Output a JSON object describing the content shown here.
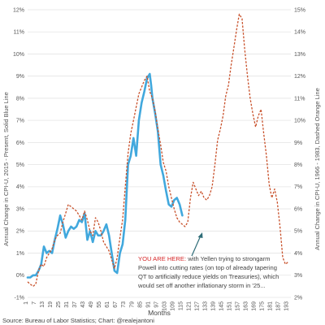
{
  "chart_data": {
    "type": "line",
    "xlabel": "Months",
    "ylabel_left": "Annual Change in CPI-U, 2015 - Present, Solid Blue Line",
    "ylabel_right": "Annual Change in CPI-U, 1966 - 1983, Dashed Orange Line",
    "x_ticks": [
      "1",
      "7",
      "13",
      "19",
      "25",
      "31",
      "37",
      "43",
      "49",
      "55",
      "61",
      "67",
      "73",
      "79",
      "85",
      "91",
      "97",
      "103",
      "109",
      "115",
      "121",
      "127",
      "133",
      "139",
      "145",
      "151",
      "157",
      "163",
      "169",
      "175",
      "181",
      "187",
      "193"
    ],
    "xlim": [
      1,
      195
    ],
    "left_ylim": [
      -1,
      12
    ],
    "left_ticks": [
      "-1%",
      "0%",
      "1%",
      "2%",
      "3%",
      "4%",
      "5%",
      "6%",
      "7%",
      "8%",
      "9%",
      "10%",
      "11%",
      "12%"
    ],
    "right_ylim": [
      2,
      15
    ],
    "right_ticks": [
      "2%",
      "3%",
      "4%",
      "5%",
      "6%",
      "7%",
      "8%",
      "9%",
      "10%",
      "11%",
      "12%",
      "13%",
      "14%",
      "15%"
    ],
    "grid": true,
    "colors": {
      "blue": "#41a8dd",
      "orange": "#c8502a"
    },
    "series": [
      {
        "axis": "left",
        "style": "solid",
        "x": [
          1,
          3,
          5,
          7,
          9,
          11,
          13,
          15,
          17,
          19,
          21,
          23,
          25,
          27,
          29,
          31,
          33,
          35,
          37,
          39,
          41,
          43,
          45,
          47,
          49,
          51,
          53,
          55,
          57,
          59,
          61,
          63,
          65,
          67,
          69,
          71,
          73,
          75,
          77,
          79,
          81,
          83,
          85,
          87,
          89,
          91,
          92,
          93,
          95,
          97,
          99,
          101,
          103,
          105,
          107,
          109,
          111,
          113,
          115
        ],
        "values": [
          -0.1,
          -0.1,
          0.0,
          0.0,
          0.2,
          0.5,
          1.3,
          1.0,
          1.1,
          1.0,
          1.6,
          2.1,
          2.7,
          2.3,
          1.7,
          2.0,
          2.2,
          2.1,
          2.2,
          2.5,
          2.4,
          2.8,
          1.6,
          2.0,
          1.5,
          2.0,
          1.8,
          1.8,
          2.0,
          2.3,
          1.8,
          1.0,
          0.2,
          0.1,
          1.0,
          1.4,
          2.5,
          5.0,
          5.4,
          6.2,
          5.4,
          7.0,
          7.8,
          8.3,
          8.9,
          9.1,
          8.6,
          8.0,
          7.3,
          6.5,
          5.0,
          4.5,
          3.8,
          3.2,
          3.1,
          3.4,
          3.5,
          3.2,
          2.7
        ]
      },
      {
        "axis": "right",
        "style": "dashed",
        "x": [
          1,
          3,
          5,
          7,
          9,
          11,
          13,
          15,
          17,
          19,
          21,
          23,
          25,
          27,
          29,
          31,
          33,
          35,
          37,
          39,
          41,
          43,
          45,
          47,
          49,
          51,
          53,
          55,
          57,
          59,
          61,
          63,
          65,
          67,
          69,
          71,
          73,
          75,
          77,
          79,
          81,
          83,
          85,
          87,
          89,
          91,
          93,
          95,
          97,
          99,
          101,
          103,
          105,
          107,
          109,
          111,
          113,
          115,
          117,
          119,
          121,
          123,
          125,
          127,
          129,
          131,
          133,
          135,
          137,
          139,
          141,
          143,
          145,
          147,
          149,
          151,
          153,
          155,
          157,
          159,
          161,
          163,
          165,
          167,
          169,
          171,
          173,
          175,
          177,
          179,
          181,
          183,
          185,
          187,
          189,
          191,
          193
        ],
        "values": [
          2.7,
          2.6,
          2.5,
          2.6,
          3.2,
          3.5,
          3.4,
          3.8,
          4.0,
          4.2,
          4.6,
          4.8,
          4.9,
          5.4,
          5.8,
          6.2,
          6.1,
          6.0,
          5.9,
          5.7,
          5.5,
          5.9,
          5.5,
          5.0,
          4.8,
          5.6,
          5.4,
          5.0,
          4.5,
          4.3,
          4.1,
          3.7,
          3.3,
          3.8,
          4.7,
          5.5,
          7.0,
          8.5,
          9.4,
          10.0,
          10.6,
          11.2,
          11.5,
          11.8,
          12.0,
          11.3,
          11.0,
          10.4,
          9.6,
          8.9,
          8.1,
          7.7,
          7.0,
          6.5,
          6.0,
          5.6,
          5.4,
          5.3,
          5.2,
          5.4,
          6.5,
          7.2,
          6.9,
          6.6,
          6.8,
          6.5,
          6.4,
          6.6,
          7.0,
          8.0,
          9.1,
          9.6,
          10.2,
          11.1,
          11.6,
          12.5,
          13.3,
          14.1,
          14.8,
          14.6,
          13.2,
          12.0,
          11.0,
          10.3,
          9.7,
          10.2,
          10.5,
          9.4,
          8.4,
          7.1,
          6.5,
          6.9,
          6.3,
          5.2,
          3.8,
          3.5,
          3.6
        ]
      }
    ]
  },
  "annotation": {
    "highlight": "YOU ARE HERE:",
    "lines": [
      " with Yellen trying to strongarm",
      "Powell into cutting rates (on top of already tapering",
      "QT to artificially reduce yields on Treasuries), which",
      "would set off another inflationary storm in '25..."
    ]
  },
  "source": "Source: Bureau of Labor Statistics; Chart: @realejantoni"
}
